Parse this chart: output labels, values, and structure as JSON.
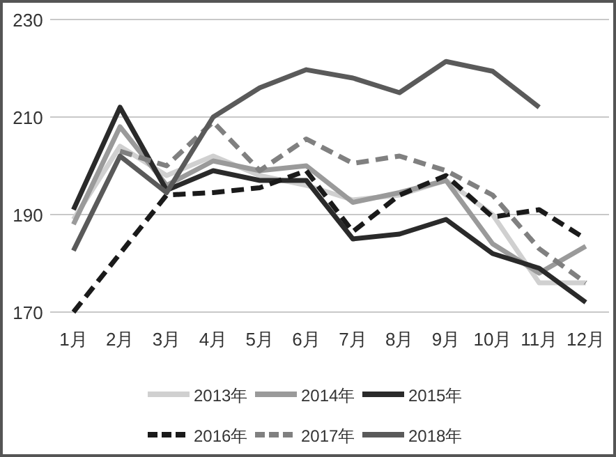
{
  "chart_data": {
    "type": "line",
    "categories": [
      "1月",
      "2月",
      "3月",
      "4月",
      "5月",
      "6月",
      "7月",
      "8月",
      "9月",
      "10月",
      "11月",
      "12月"
    ],
    "ylim": [
      170,
      230
    ],
    "yticks": [
      170,
      190,
      210,
      230
    ],
    "grid": "y",
    "legend": "bottom",
    "series": [
      {
        "name": "2013年",
        "color": "#d0d0d0",
        "line_style": "solid",
        "values": [
          189,
          204,
          198,
          202,
          198,
          196,
          193,
          194,
          197,
          190,
          176,
          176
        ]
      },
      {
        "name": "2014年",
        "color": "#9a9a9a",
        "line_style": "solid",
        "values": [
          188,
          208,
          196,
          201,
          199,
          200,
          192.5,
          194.5,
          197,
          184,
          178,
          183.5
        ]
      },
      {
        "name": "2015年",
        "color": "#2a2a2a",
        "line_style": "solid",
        "values": [
          191,
          212,
          195,
          199,
          197,
          197,
          185,
          186,
          189,
          182,
          179,
          172
        ]
      },
      {
        "name": "2016年",
        "color": "#1a1a1a",
        "line_style": "dashed",
        "values": [
          170,
          182,
          194,
          194.5,
          195.5,
          199,
          186.5,
          194,
          198,
          189.5,
          191,
          185
        ]
      },
      {
        "name": "2017年",
        "color": "#808080",
        "line_style": "dashed",
        "values": [
          null,
          203,
          200,
          209,
          199,
          205.5,
          200.5,
          202,
          199,
          194,
          183,
          176
        ]
      },
      {
        "name": "2018年",
        "color": "#5a5a5a",
        "line_style": "solid",
        "values": [
          182.6,
          202,
          194.5,
          210,
          216,
          219.7,
          218,
          215,
          221.4,
          219.4,
          212,
          null
        ]
      }
    ]
  }
}
